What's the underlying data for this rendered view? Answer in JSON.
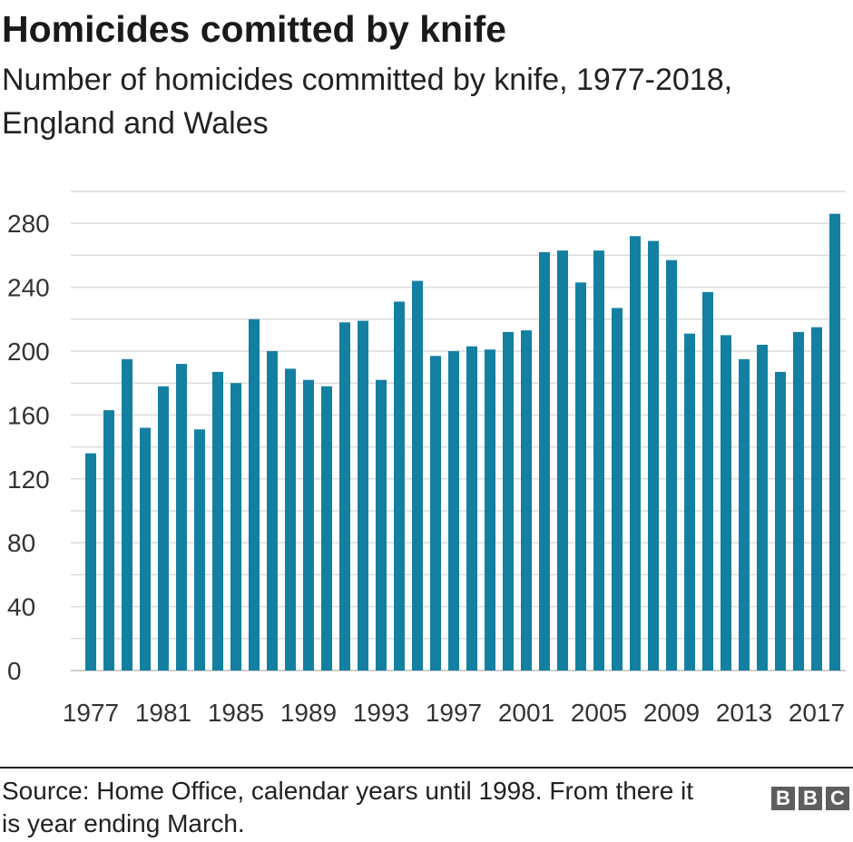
{
  "chart_data": {
    "type": "bar",
    "title": "Homicides comitted by knife",
    "subtitle": "Number of homicides committed by knife, 1977-2018, England and Wales",
    "xlabel": "",
    "ylabel": "",
    "ylim": [
      0,
      300
    ],
    "yticks": [
      0,
      40,
      80,
      120,
      160,
      200,
      240,
      280
    ],
    "xtick_labels": [
      "1977",
      "1981",
      "1985",
      "1989",
      "1993",
      "1997",
      "2001",
      "2005",
      "2009",
      "2013",
      "2017"
    ],
    "categories": [
      "1977",
      "1978",
      "1979",
      "1980",
      "1981",
      "1982",
      "1983",
      "1984",
      "1985",
      "1986",
      "1987",
      "1988",
      "1989",
      "1990",
      "1991",
      "1992",
      "1993",
      "1994",
      "1995",
      "1996",
      "1997",
      "1998",
      "1999",
      "2000",
      "2001",
      "2002",
      "2003",
      "2004",
      "2005",
      "2006",
      "2007",
      "2008",
      "2009",
      "2010",
      "2011",
      "2012",
      "2013",
      "2014",
      "2015",
      "2016",
      "2017",
      "2018"
    ],
    "values": [
      136,
      163,
      195,
      152,
      178,
      192,
      151,
      187,
      180,
      220,
      200,
      189,
      182,
      178,
      218,
      219,
      182,
      231,
      244,
      197,
      200,
      203,
      201,
      212,
      213,
      262,
      263,
      243,
      263,
      227,
      272,
      269,
      257,
      211,
      237,
      210,
      195,
      204,
      187,
      212,
      215,
      286
    ],
    "bar_color": "#1380a1",
    "grid": true
  },
  "footer": {
    "source": "Source: Home Office, calendar years until 1998. From there it is year ending March.",
    "logo_letters": [
      "B",
      "B",
      "C"
    ]
  }
}
